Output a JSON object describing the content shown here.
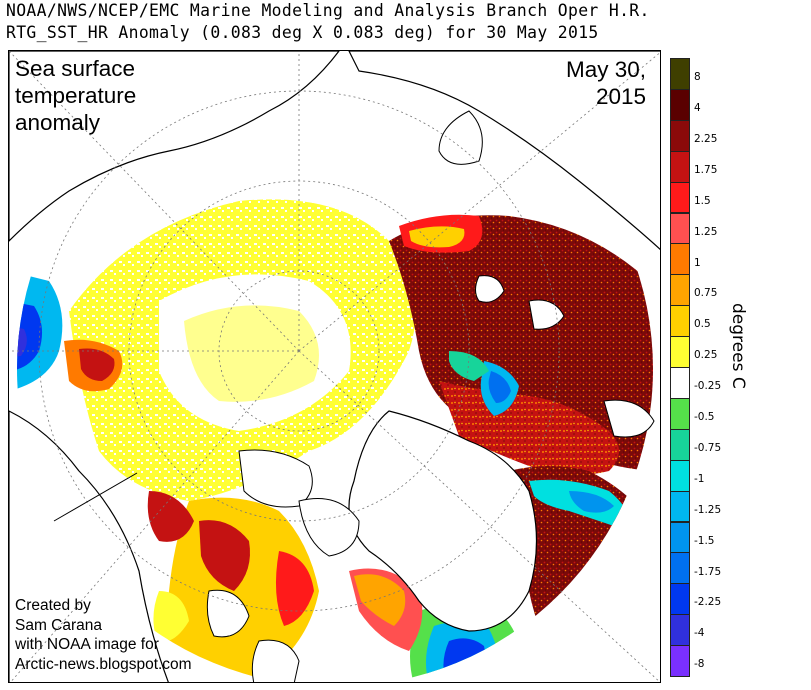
{
  "header": {
    "line1": "NOAA/NWS/NCEP/EMC Marine Modeling and Analysis Branch Oper H.R.",
    "line2": "RTG_SST_HR Anomaly (0.083 deg X 0.083 deg) for 30 May 2015"
  },
  "map": {
    "title_lines": [
      "Sea surface",
      "temperature",
      "anomaly"
    ],
    "date_lines": [
      "May 30,",
      "2015"
    ],
    "credit_lines": [
      "Created by",
      "Sam Carana",
      "with NOAA image for",
      "Arctic-news.blogspot.com"
    ],
    "colors": {
      "land": "#ffffff",
      "coast": "#000000",
      "gridline": "#777777"
    }
  },
  "legend": {
    "unit_label": "degrees C",
    "bins": [
      {
        "label": "8",
        "color": "#3f3f00"
      },
      {
        "label": "4",
        "color": "#5a0000"
      },
      {
        "label": "2.25",
        "color": "#8b0a0a"
      },
      {
        "label": "1.75",
        "color": "#c41212"
      },
      {
        "label": "1.5",
        "color": "#ff1a1a"
      },
      {
        "label": "1.25",
        "color": "#ff5050"
      },
      {
        "label": "1",
        "color": "#ff7a00"
      },
      {
        "label": "0.75",
        "color": "#ffa400"
      },
      {
        "label": "0.5",
        "color": "#ffd000"
      },
      {
        "label": "0.25",
        "color": "#ffff33"
      },
      {
        "label": "-0.25",
        "color": "#ffffff"
      },
      {
        "label": "-0.5",
        "color": "#55e04a"
      },
      {
        "label": "-0.75",
        "color": "#17d49a"
      },
      {
        "label": "-1",
        "color": "#00e0e0"
      },
      {
        "label": "-1.25",
        "color": "#00b8f0"
      },
      {
        "label": "-1.5",
        "color": "#0094ee"
      },
      {
        "label": "-1.75",
        "color": "#0070f0"
      },
      {
        "label": "-2.25",
        "color": "#0038f0"
      },
      {
        "label": "-4",
        "color": "#3030dd"
      },
      {
        "label": "-8",
        "color": "#7a30ff"
      }
    ]
  }
}
